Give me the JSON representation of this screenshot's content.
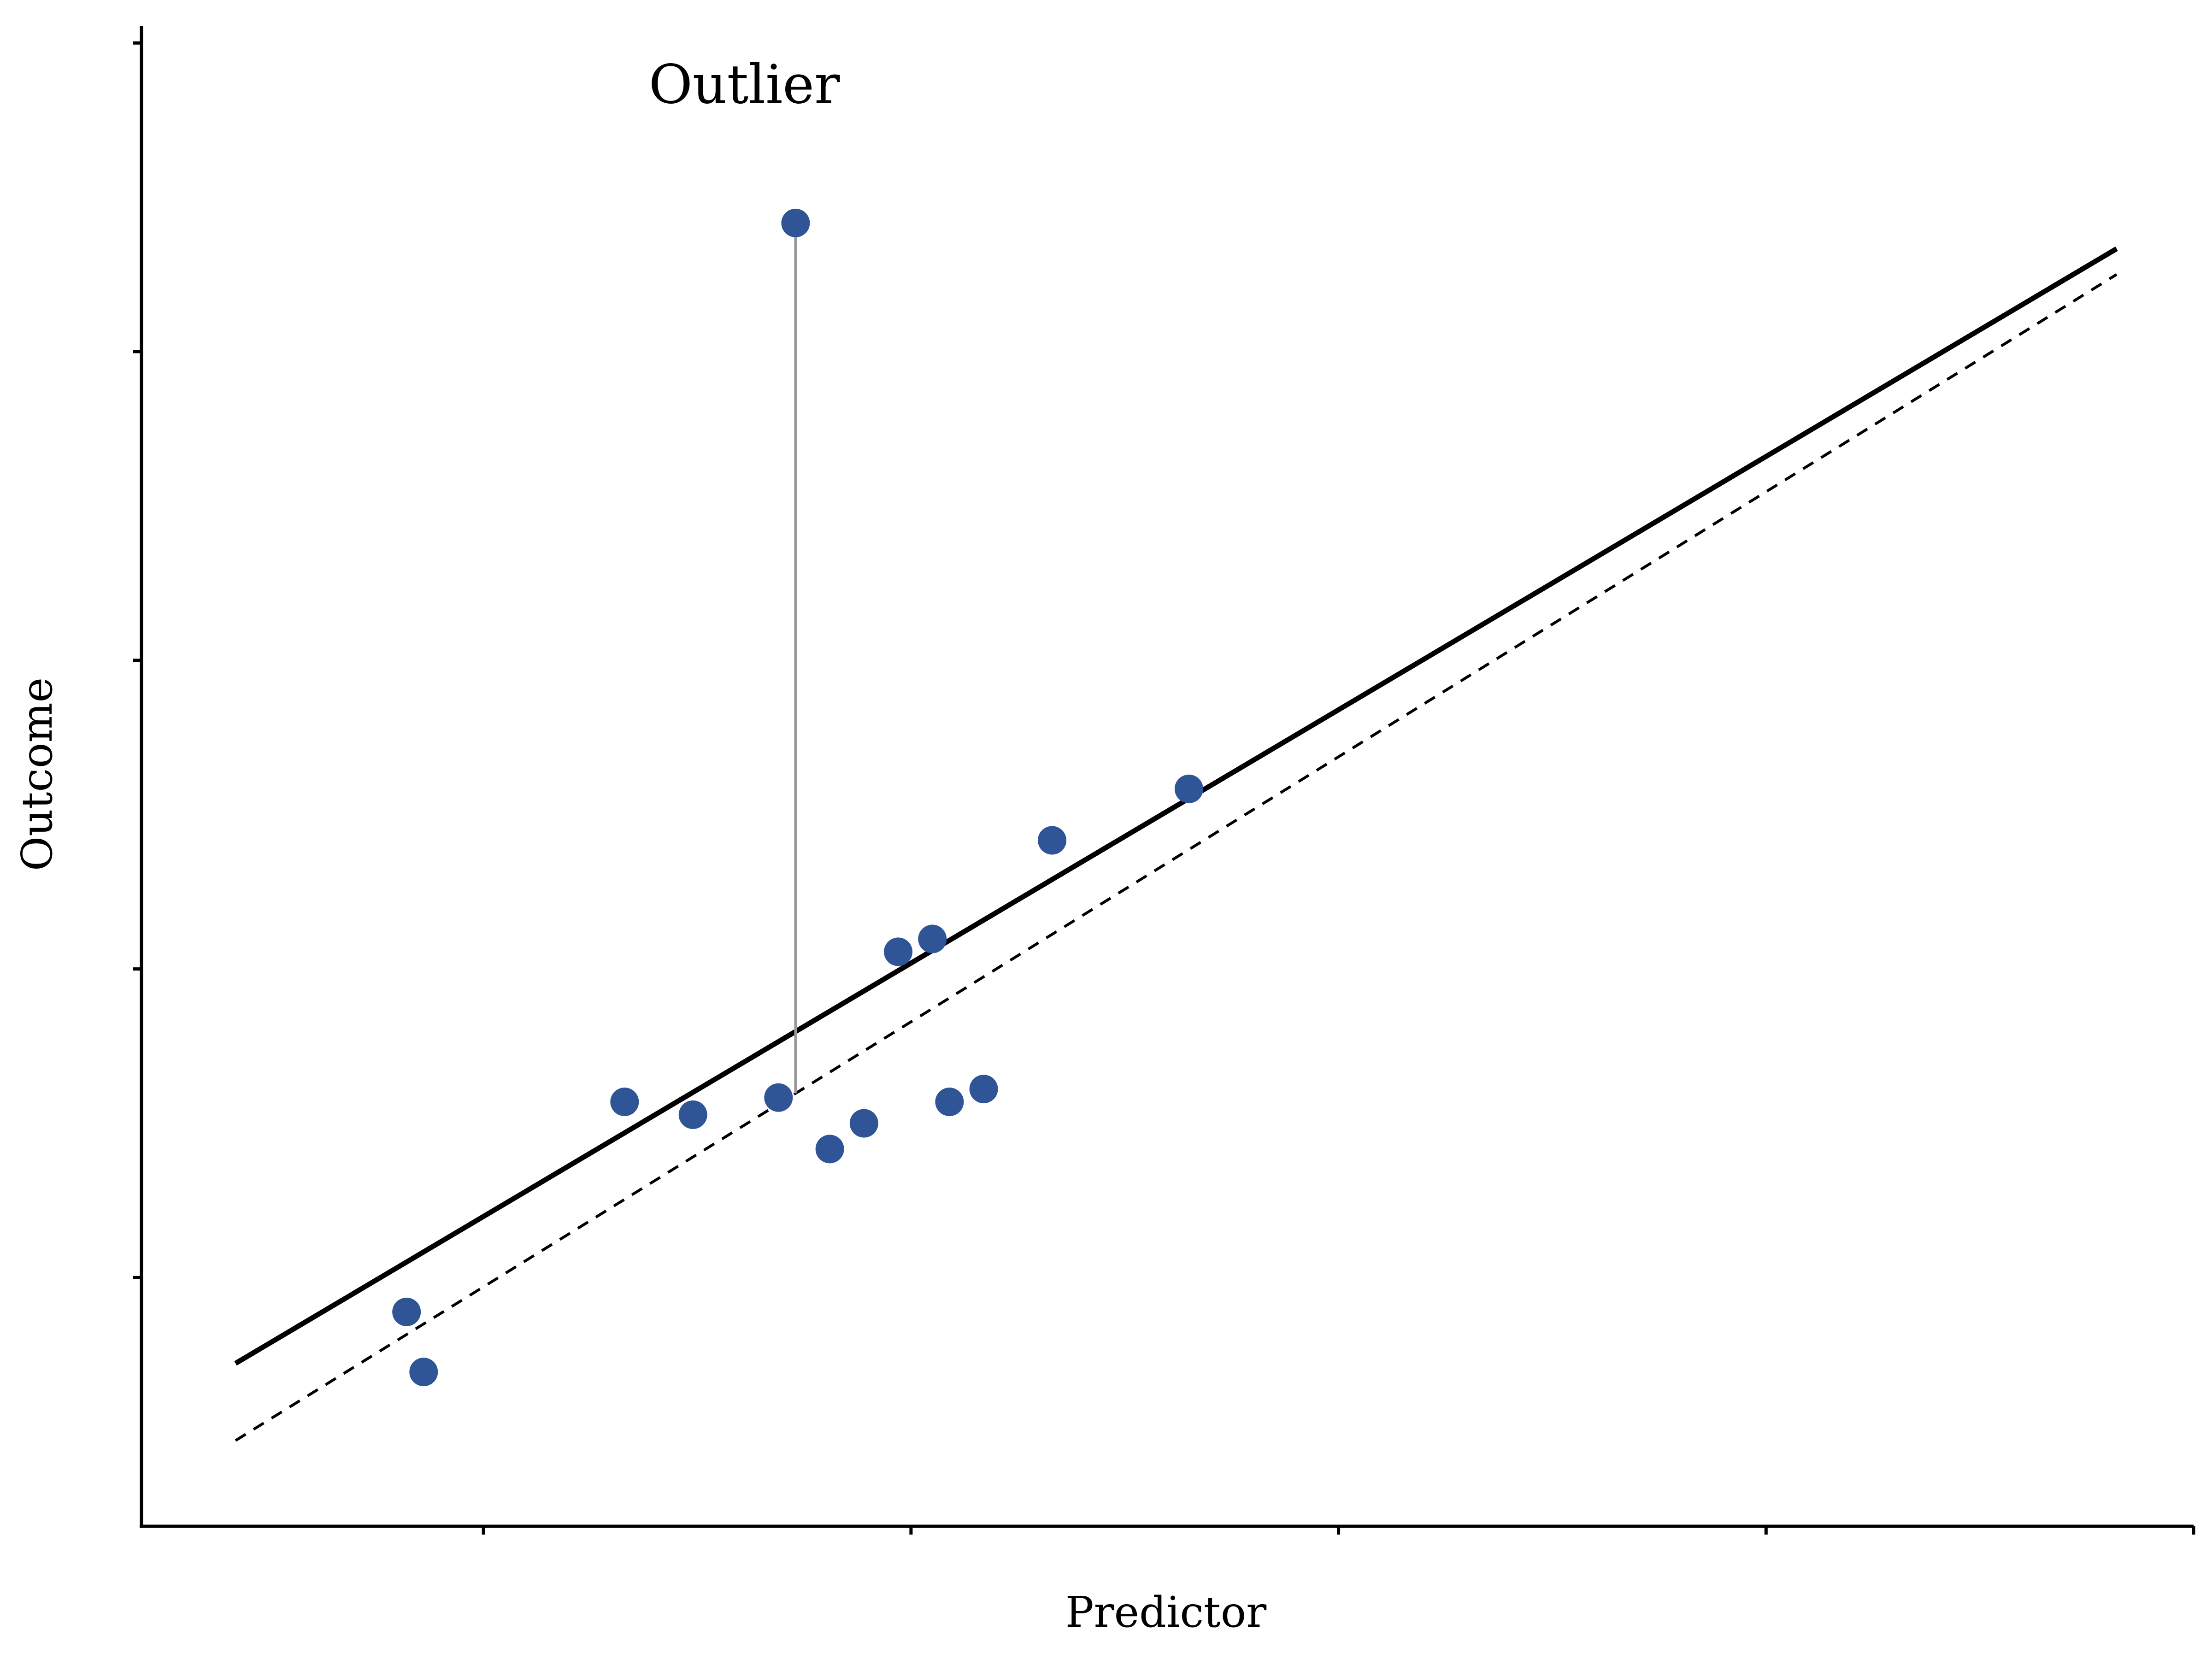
{
  "chart_data": {
    "type": "scatter",
    "title": "",
    "xlabel": "Predictor",
    "ylabel": "Outcome",
    "xlim": [
      0,
      4.8
    ],
    "ylim": [
      0,
      3.5
    ],
    "x_ticks": [
      0.8,
      1.8,
      2.8,
      3.8,
      4.8
    ],
    "y_ticks": [
      0.58,
      1.3,
      2.02,
      2.74,
      3.46
    ],
    "tick_labels_shown": false,
    "grid": false,
    "legend": "none",
    "point_color": "#2f5597",
    "points": [
      {
        "x": 0.62,
        "y": 0.5
      },
      {
        "x": 0.66,
        "y": 0.36
      },
      {
        "x": 1.13,
        "y": 0.99
      },
      {
        "x": 1.29,
        "y": 0.96
      },
      {
        "x": 1.49,
        "y": 1.0
      },
      {
        "x": 1.53,
        "y": 3.04
      },
      {
        "x": 1.61,
        "y": 0.88
      },
      {
        "x": 1.69,
        "y": 0.94
      },
      {
        "x": 1.77,
        "y": 1.34
      },
      {
        "x": 1.85,
        "y": 1.37
      },
      {
        "x": 1.89,
        "y": 0.99
      },
      {
        "x": 1.97,
        "y": 1.02
      },
      {
        "x": 2.13,
        "y": 1.6
      },
      {
        "x": 2.45,
        "y": 1.72
      }
    ],
    "lines": [
      {
        "style": "solid",
        "x": [
          0.22,
          4.62
        ],
        "y": [
          0.38,
          2.98
        ]
      },
      {
        "style": "dashed",
        "x": [
          0.22,
          4.62
        ],
        "y": [
          0.2,
          2.92
        ]
      }
    ],
    "residual_segment": {
      "x": 1.53,
      "y_from": 3.04,
      "y_to": 1.01
    },
    "annotations": [
      {
        "text": "Outlier",
        "x": 1.41,
        "y": 3.32
      }
    ]
  }
}
